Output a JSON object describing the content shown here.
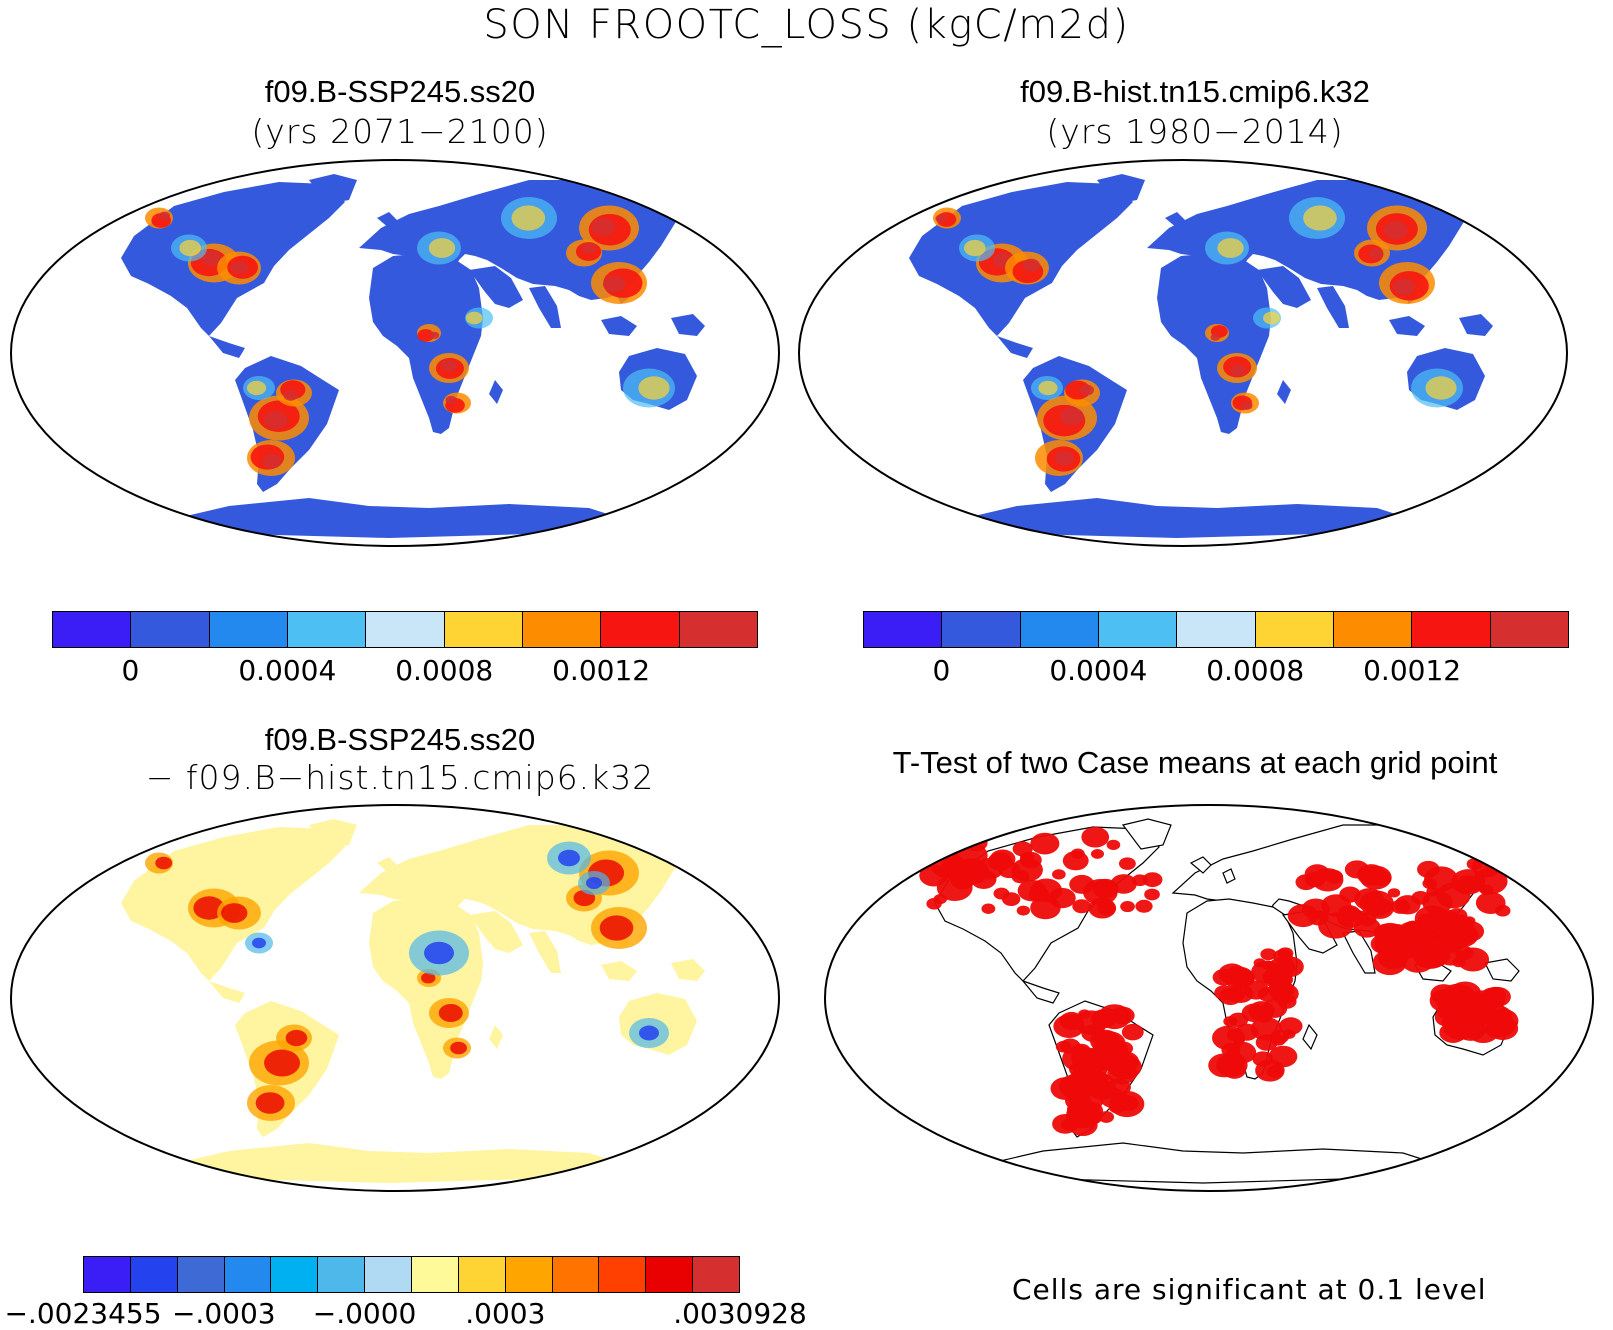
{
  "title": "SON FROOTC_LOSS (kgC/m2d)",
  "panels": {
    "top_left": {
      "title": "f09.B-SSP245.ss20",
      "subtitle": "(yrs 2071−2100)"
    },
    "top_right": {
      "title": "f09.B-hist.tn15.cmip6.k32",
      "subtitle": "(yrs 1980−2014)"
    },
    "bottom_left": {
      "title": "f09.B-SSP245.ss20",
      "subtitle": "− f09.B−hist.tn15.cmip6.k32"
    },
    "bottom_right": {
      "title": "T-Test of two Case means at each grid point",
      "note": "Cells are significant at 0.1 level"
    }
  },
  "colorbars": {
    "case": {
      "colors": [
        "#3a1ef5",
        "#3559dc",
        "#2389ef",
        "#4dbff3",
        "#c8e6f8",
        "#fdd433",
        "#fe8c00",
        "#f61510",
        "#d52f30"
      ],
      "tick_labels": [
        "0",
        "0.0004",
        "0.0008",
        "0.0012"
      ]
    },
    "diff": {
      "colors": [
        "#3a1ef5",
        "#2542ef",
        "#3e6ad6",
        "#2389ef",
        "#00b0f0",
        "#4fb8ea",
        "#b0daf4",
        "#fffa99",
        "#fdd433",
        "#fea500",
        "#ff7300",
        "#ff4000",
        "#e90000",
        "#d52f30"
      ],
      "tick_labels": [
        "−.0023455",
        "−.0003",
        "−.0000",
        ".0003",
        ".0030928"
      ]
    }
  },
  "map_colors": {
    "ocean": "#ffffff",
    "case_base": "#3559dc",
    "diff_base": "#fff4a0",
    "significant": "#ee0a0a",
    "coast": "#000000"
  }
}
